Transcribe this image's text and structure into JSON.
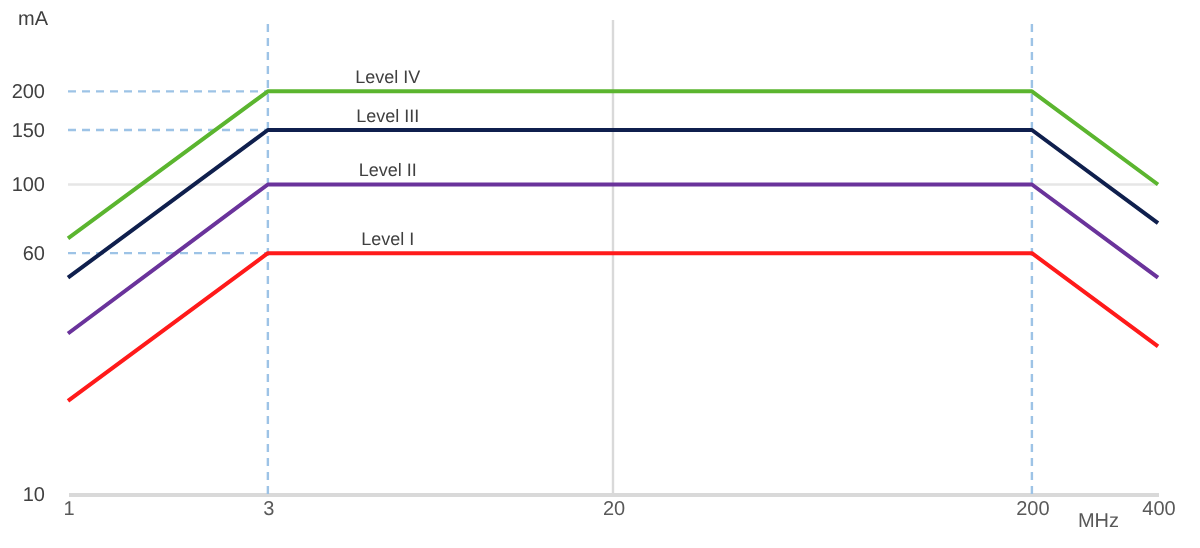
{
  "chart_data": {
    "type": "line",
    "xlabel": "MHz",
    "ylabel": "mA",
    "log": "xy",
    "marker": "none",
    "line_style": "solid",
    "x": [
      1,
      3,
      200,
      400
    ],
    "series": [
      {
        "name": "Level IV",
        "color": "#5bb52f",
        "values": [
          67,
          200,
          200,
          100
        ]
      },
      {
        "name": "Level III",
        "color": "#0f1f4d",
        "values": [
          50,
          150,
          150,
          75
        ]
      },
      {
        "name": "Level II",
        "color": "#6a339b",
        "values": [
          33,
          100,
          100,
          50
        ]
      },
      {
        "name": "Level I",
        "color": "#ff1a1a",
        "values": [
          20,
          60,
          60,
          30
        ]
      }
    ],
    "xlim": [
      1,
      400
    ],
    "xticks": [
      1,
      3,
      20,
      200,
      400
    ],
    "ylim": [
      10,
      340
    ],
    "yticks": [
      10,
      60,
      100,
      150,
      200
    ],
    "ref_lines": [
      {
        "axis": "x",
        "value": 3,
        "label": null,
        "color": "#9dc3e6",
        "line_style": "dashed"
      },
      {
        "axis": "x",
        "value": 200,
        "label": null,
        "color": "#9dc3e6",
        "line_style": "dashed"
      },
      {
        "axis": "x",
        "value": 20,
        "label": null,
        "color": "#d9d9d9",
        "line_style": "solid"
      },
      {
        "axis": "y",
        "value": 100,
        "label": null,
        "color": "#e6e6e6",
        "line_style": "solid"
      },
      {
        "axis": "y",
        "value": 200,
        "label": null,
        "color": "#9dc3e6",
        "line_style": "dashed"
      },
      {
        "axis": "y",
        "value": 150,
        "label": null,
        "color": "#9dc3e6",
        "line_style": "dashed"
      },
      {
        "axis": "y",
        "value": 60,
        "label": null,
        "color": "#9dc3e6",
        "line_style": "dashed"
      }
    ]
  }
}
